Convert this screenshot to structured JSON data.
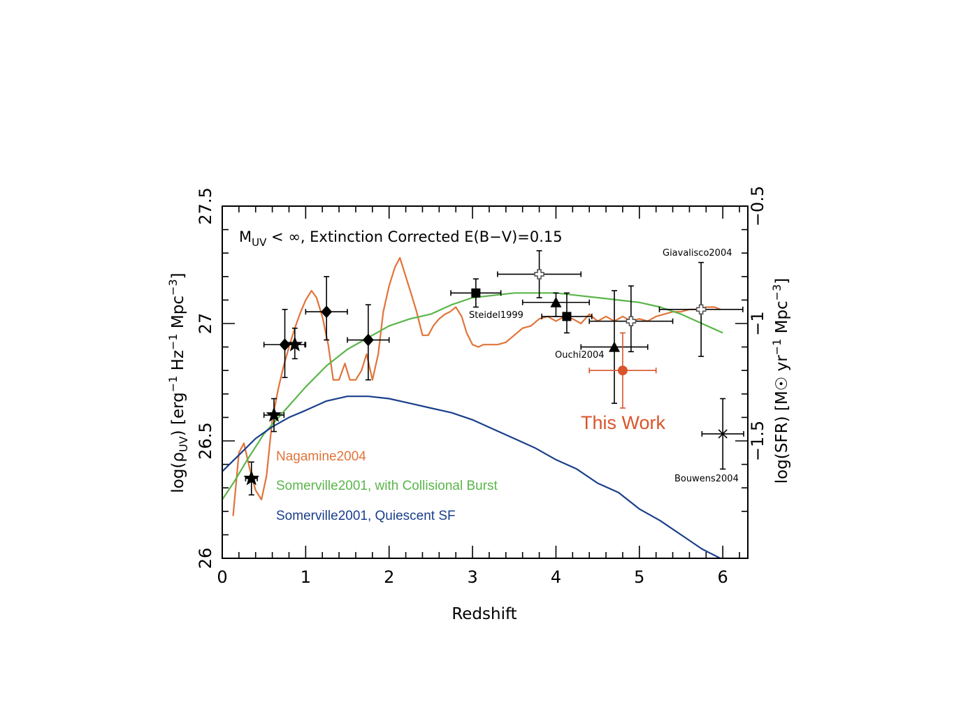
{
  "chart_data": {
    "type": "scatter",
    "title": "M_UV < ∞, Extinction Corrected E(B−V)=0.15",
    "title_parts": {
      "m": "M",
      "sub": "UV",
      "rest": " < ∞, Extinction Corrected E(B−V)=0.15"
    },
    "xlabel": "Redshift",
    "ylabel_left": {
      "a": "log(ρ",
      "sub": "UV",
      "b": ") [erg",
      "sup1": "−1",
      "c": " Hz",
      "sup2": "−1",
      "d": " Mpc",
      "sup3": "−3",
      "e": "]"
    },
    "ylabel_right": {
      "a": "log(SFR) [M",
      "sym": "☉",
      "b": " yr",
      "sup1": "−1",
      "c": " Mpc",
      "sup2": "−3",
      "d": "]"
    },
    "xlim": [
      0,
      6.3
    ],
    "ylim": [
      26,
      27.5
    ],
    "xticks": [
      "0",
      "1",
      "2",
      "3",
      "4",
      "5",
      "6"
    ],
    "yticks_left": [
      "26",
      "26.5",
      "27",
      "27.5"
    ],
    "yticks_right": [
      "−1.5",
      "−1",
      "−0.5"
    ],
    "right_axis_values": [
      -1.5,
      -1,
      -0.5
    ],
    "right_axis_offset": -28.0,
    "grid": false,
    "series": [
      {
        "name": "Nagamine2004",
        "kind": "line",
        "color": "#e0743a",
        "x": [
          0.13,
          0.2,
          0.26,
          0.33,
          0.4,
          0.47,
          0.53,
          0.6,
          0.67,
          0.73,
          0.8,
          0.87,
          0.93,
          1.0,
          1.07,
          1.13,
          1.2,
          1.27,
          1.33,
          1.4,
          1.47,
          1.53,
          1.6,
          1.67,
          1.73,
          1.8,
          1.87,
          1.93,
          2.0,
          2.07,
          2.13,
          2.2,
          2.27,
          2.33,
          2.4,
          2.47,
          2.53,
          2.6,
          2.67,
          2.73,
          2.8,
          2.87,
          2.93,
          3.0,
          3.07,
          3.13,
          3.2,
          3.3,
          3.4,
          3.5,
          3.6,
          3.7,
          3.8,
          3.9,
          4.0,
          4.1,
          4.2,
          4.3,
          4.4,
          4.5,
          4.6,
          4.7,
          4.8,
          4.9,
          5.0,
          5.1,
          5.2,
          5.3,
          5.4,
          5.5,
          5.6,
          5.7,
          5.8,
          5.9,
          5.97
        ],
        "y": [
          26.18,
          26.45,
          26.49,
          26.38,
          26.29,
          26.25,
          26.35,
          26.59,
          26.72,
          26.81,
          26.9,
          26.98,
          27.04,
          27.1,
          27.14,
          27.11,
          27.03,
          26.91,
          26.76,
          26.76,
          26.83,
          26.76,
          26.76,
          26.8,
          26.87,
          26.76,
          26.87,
          27.05,
          27.16,
          27.24,
          27.28,
          27.2,
          27.12,
          27.05,
          26.95,
          26.95,
          26.99,
          27.02,
          27.04,
          27.05,
          27.07,
          27.03,
          26.96,
          26.91,
          26.9,
          26.91,
          26.91,
          26.91,
          26.92,
          26.95,
          26.98,
          26.99,
          27.02,
          27.03,
          27.01,
          27.03,
          27.02,
          27.0,
          27.04,
          27.01,
          27.03,
          27.01,
          27.03,
          27.01,
          27.02,
          27.01,
          27.03,
          27.04,
          27.05,
          27.05,
          27.06,
          27.06,
          27.07,
          27.07,
          27.06
        ]
      },
      {
        "name": "Somerville2001, with Collisional Burst",
        "kind": "line",
        "color": "#5ab54a",
        "x": [
          0.0,
          0.15,
          0.3,
          0.5,
          0.7,
          1.0,
          1.25,
          1.5,
          1.75,
          2.0,
          2.25,
          2.5,
          2.75,
          3.0,
          3.25,
          3.5,
          3.75,
          4.0,
          4.25,
          4.5,
          4.75,
          5.0,
          5.25,
          5.5,
          5.75,
          6.0
        ],
        "y": [
          26.25,
          26.33,
          26.42,
          26.53,
          26.61,
          26.73,
          26.82,
          26.89,
          26.94,
          26.99,
          27.02,
          27.04,
          27.08,
          27.11,
          27.12,
          27.13,
          27.13,
          27.13,
          27.12,
          27.11,
          27.1,
          27.09,
          27.07,
          27.04,
          27.0,
          26.96
        ]
      },
      {
        "name": "Somerville2001, Quiescent SF",
        "kind": "line",
        "color": "#1a3f8c",
        "x": [
          0.0,
          0.2,
          0.4,
          0.6,
          0.8,
          1.0,
          1.25,
          1.5,
          1.75,
          2.0,
          2.25,
          2.5,
          2.75,
          3.0,
          3.25,
          3.5,
          3.75,
          4.0,
          4.25,
          4.5,
          4.75,
          5.0,
          5.25,
          5.5,
          5.75,
          5.97
        ],
        "y": [
          26.37,
          26.44,
          26.51,
          26.56,
          26.6,
          26.63,
          26.67,
          26.69,
          26.69,
          26.68,
          26.66,
          26.64,
          26.62,
          26.59,
          26.55,
          26.51,
          26.47,
          26.42,
          26.38,
          26.32,
          26.28,
          26.21,
          26.16,
          26.1,
          26.04,
          26.0
        ]
      },
      {
        "name": "stars",
        "kind": "points",
        "marker": "star",
        "color": "#000000",
        "points": [
          {
            "x": 0.35,
            "y": 26.34,
            "xerr": 0.07,
            "yerr_lo": 0.07,
            "yerr_hi": 0.07
          },
          {
            "x": 0.62,
            "y": 26.61,
            "xerr": 0.12,
            "yerr_lo": 0.07,
            "yerr_hi": 0.07
          },
          {
            "x": 0.87,
            "y": 26.91,
            "xerr": 0.12,
            "yerr_lo": 0.06,
            "yerr_hi": 0.07
          }
        ]
      },
      {
        "name": "diamonds",
        "kind": "points",
        "marker": "diamond",
        "color": "#000000",
        "points": [
          {
            "x": 0.75,
            "y": 26.91,
            "xerr": 0.25,
            "yerr_lo": 0.14,
            "yerr_hi": 0.15
          },
          {
            "x": 1.25,
            "y": 27.05,
            "xerr": 0.25,
            "yerr_lo": 0.12,
            "yerr_hi": 0.15
          },
          {
            "x": 1.75,
            "y": 26.93,
            "xerr": 0.25,
            "yerr_lo": 0.17,
            "yerr_hi": 0.15
          }
        ]
      },
      {
        "name": "Steidel1999",
        "label": "Steidel1999",
        "kind": "points",
        "marker": "square",
        "color": "#000000",
        "points": [
          {
            "x": 3.04,
            "y": 27.13,
            "xerr": 0.3,
            "yerr_lo": 0.06,
            "yerr_hi": 0.06
          },
          {
            "x": 4.13,
            "y": 27.03,
            "xerr": 0.3,
            "yerr_lo": 0.07,
            "yerr_hi": 0.1
          }
        ]
      },
      {
        "name": "Ouchi2004",
        "label": "Ouchi2004",
        "kind": "points",
        "marker": "triangle",
        "color": "#000000",
        "points": [
          {
            "x": 4.0,
            "y": 27.09,
            "xerr": 0.4,
            "yerr_lo": 0.06,
            "yerr_hi": 0.04
          },
          {
            "x": 4.7,
            "y": 26.9,
            "xerr": 0.4,
            "yerr_lo": 0.24,
            "yerr_hi": 0.24
          }
        ]
      },
      {
        "name": "Giavalisco2004",
        "label": "Giavalisco2004",
        "kind": "points",
        "marker": "cross",
        "color": "#000000",
        "points": [
          {
            "x": 3.8,
            "y": 27.21,
            "xerr": 0.5,
            "yerr_lo": 0.1,
            "yerr_hi": 0.1
          },
          {
            "x": 4.9,
            "y": 27.01,
            "xerr": 0.5,
            "yerr_lo": 0.13,
            "yerr_hi": 0.15
          },
          {
            "x": 5.74,
            "y": 27.06,
            "xerr": 0.5,
            "yerr_lo": 0.2,
            "yerr_hi": 0.2
          }
        ]
      },
      {
        "name": "This Work",
        "label": "This Work",
        "kind": "points",
        "marker": "circle",
        "color": "#d9542b",
        "points": [
          {
            "x": 4.8,
            "y": 26.8,
            "xerr": 0.4,
            "yerr_lo": 0.16,
            "yerr_hi": 0.16
          }
        ]
      },
      {
        "name": "Bouwens2004",
        "label": "Bouwens2004",
        "kind": "points",
        "marker": "x",
        "color": "#000000",
        "points": [
          {
            "x": 6.0,
            "y": 26.53,
            "xerr": 0.25,
            "yerr_lo": 0.15,
            "yerr_hi": 0.15
          }
        ]
      }
    ],
    "legend": [
      {
        "label": "Nagamine2004",
        "color": "#e0743a"
      },
      {
        "label": "Somerville2001, with Collisional Burst",
        "color": "#5ab54a"
      },
      {
        "label": "Somerville2001, Quiescent SF",
        "color": "#1a3f8c"
      }
    ],
    "legend_placement": "lower-left"
  }
}
